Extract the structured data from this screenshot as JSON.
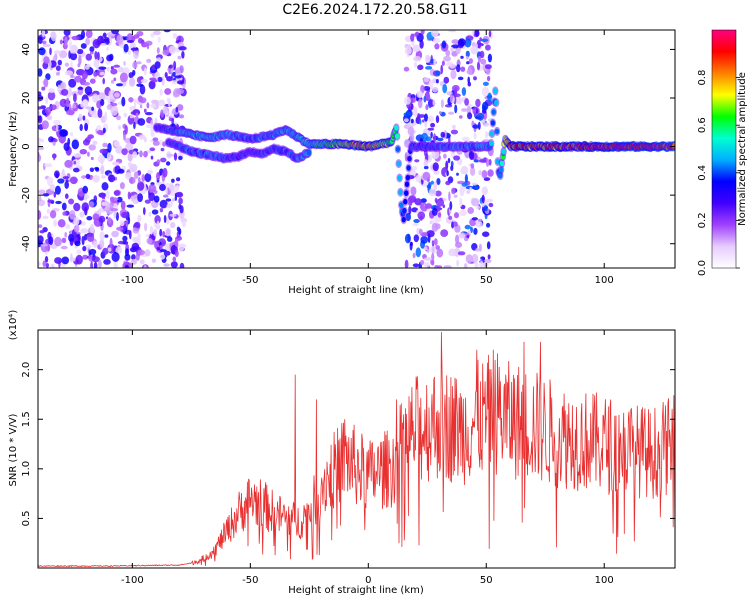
{
  "figure_title": "C2E6.2024.172.20.58.G11",
  "chart_data": [
    {
      "type": "heatmap",
      "xlabel": "Height of straight line (km)",
      "ylabel": "Frequency (Hz)",
      "xlim": [
        -140,
        130
      ],
      "ylim": [
        -50,
        48
      ],
      "x_ticks": [
        -100,
        -50,
        0,
        50,
        100
      ],
      "y_ticks": [
        -40,
        -20,
        0,
        20,
        40
      ],
      "colorbar": {
        "label": "Normalized spectral amplitude",
        "range": [
          0.0,
          1.0
        ],
        "ticks": [
          "0.0",
          "0.2",
          "0.4",
          "0.6",
          "0.8"
        ],
        "tick_values": [
          0.0,
          0.2,
          0.4,
          0.6,
          0.8
        ],
        "colors": [
          "#ffffff",
          "#e6ccff",
          "#a040ff",
          "#4000ff",
          "#0000ff",
          "#00b0ff",
          "#00ffd0",
          "#00ff00",
          "#ffff00",
          "#ff8000",
          "#ff0000",
          "#ff0080"
        ]
      },
      "noise_regions": [
        {
          "x_range": [
            -140,
            -78
          ],
          "level": 0.25
        },
        {
          "x_range": [
            16,
            52
          ],
          "level": 0.3
        }
      ],
      "ridge": [
        [
          -90,
          8
        ],
        [
          -85,
          7
        ],
        [
          -80,
          6
        ],
        [
          -75,
          5
        ],
        [
          -70,
          4
        ],
        [
          -65,
          4
        ],
        [
          -60,
          5
        ],
        [
          -55,
          4
        ],
        [
          -50,
          3
        ],
        [
          -45,
          4
        ],
        [
          -40,
          5
        ],
        [
          -35,
          7
        ],
        [
          -30,
          4
        ],
        [
          -25,
          1
        ],
        [
          -20,
          1
        ],
        [
          -10,
          1
        ],
        [
          0,
          0
        ],
        [
          5,
          1
        ],
        [
          10,
          2
        ],
        [
          12,
          8
        ],
        [
          14,
          -25
        ],
        [
          15,
          -30
        ],
        [
          18,
          0
        ],
        [
          52,
          0
        ],
        [
          54,
          25
        ],
        [
          55,
          -10
        ],
        [
          56,
          -12
        ],
        [
          58,
          3
        ],
        [
          60,
          0
        ],
        [
          130,
          0
        ]
      ],
      "ridge_secondary": [
        [
          -85,
          2
        ],
        [
          -80,
          0
        ],
        [
          -75,
          -2
        ],
        [
          -70,
          -3
        ],
        [
          -65,
          -4
        ],
        [
          -60,
          -5
        ],
        [
          -55,
          -4
        ],
        [
          -50,
          -2
        ],
        [
          -45,
          -3
        ],
        [
          -40,
          -1
        ],
        [
          -35,
          -2
        ],
        [
          -30,
          -5
        ],
        [
          -25,
          -2
        ]
      ],
      "ridge_amplitude": [
        [
          -90,
          0.35
        ],
        [
          -80,
          0.45
        ],
        [
          -70,
          0.5
        ],
        [
          -60,
          0.45
        ],
        [
          -50,
          0.4
        ],
        [
          -40,
          0.45
        ],
        [
          -30,
          0.5
        ],
        [
          -20,
          0.55
        ],
        [
          -10,
          0.7
        ],
        [
          0,
          0.8
        ],
        [
          10,
          0.6
        ],
        [
          15,
          0.35
        ],
        [
          56,
          0.45
        ],
        [
          60,
          0.85
        ],
        [
          130,
          0.95
        ]
      ]
    },
    {
      "type": "line",
      "xlabel": "Height of straight line (km)",
      "ylabel": "SNR (10 * V/V)",
      "multiplier": "(x10⁴)",
      "xlim": [
        -140,
        130
      ],
      "ylim": [
        0,
        2.4
      ],
      "x_ticks": [
        -100,
        -50,
        0,
        50,
        100
      ],
      "y_ticks": [
        0.5,
        1.0,
        1.5,
        2.0
      ],
      "y_tick_labels": [
        "0.5",
        "1.0",
        "1.5",
        "2.0"
      ],
      "color": "#e83030",
      "envelope": [
        [
          -140,
          0.02
        ],
        [
          -110,
          0.02
        ],
        [
          -80,
          0.03
        ],
        [
          -75,
          0.05
        ],
        [
          -70,
          0.1
        ],
        [
          -65,
          0.2
        ],
        [
          -60,
          0.4
        ],
        [
          -55,
          0.6
        ],
        [
          -50,
          0.75
        ],
        [
          -45,
          0.7
        ],
        [
          -40,
          0.6
        ],
        [
          -35,
          0.55
        ],
        [
          -30,
          0.5
        ],
        [
          -25,
          0.6
        ],
        [
          -20,
          0.9
        ],
        [
          -15,
          1.05
        ],
        [
          -10,
          1.2
        ],
        [
          -5,
          1.1
        ],
        [
          0,
          1.0
        ],
        [
          5,
          1.05
        ],
        [
          10,
          1.1
        ],
        [
          15,
          1.35
        ],
        [
          20,
          1.5
        ],
        [
          25,
          1.55
        ],
        [
          30,
          1.6
        ],
        [
          35,
          1.55
        ],
        [
          40,
          1.5
        ],
        [
          45,
          1.6
        ],
        [
          50,
          1.65
        ],
        [
          55,
          1.7
        ],
        [
          60,
          1.6
        ],
        [
          65,
          1.6
        ],
        [
          70,
          1.55
        ],
        [
          80,
          1.45
        ],
        [
          90,
          1.4
        ],
        [
          100,
          1.35
        ],
        [
          110,
          1.3
        ],
        [
          120,
          1.25
        ],
        [
          130,
          1.35
        ]
      ],
      "spikes": [
        [
          -31,
          1.95
        ],
        [
          -22,
          1.7
        ],
        [
          -10,
          1.5
        ],
        [
          31,
          2.38
        ],
        [
          46,
          2.2
        ],
        [
          53,
          2.2
        ],
        [
          66,
          2.28
        ],
        [
          73,
          2.28
        ],
        [
          12,
          1.7
        ],
        [
          15,
          1.55
        ]
      ]
    }
  ]
}
